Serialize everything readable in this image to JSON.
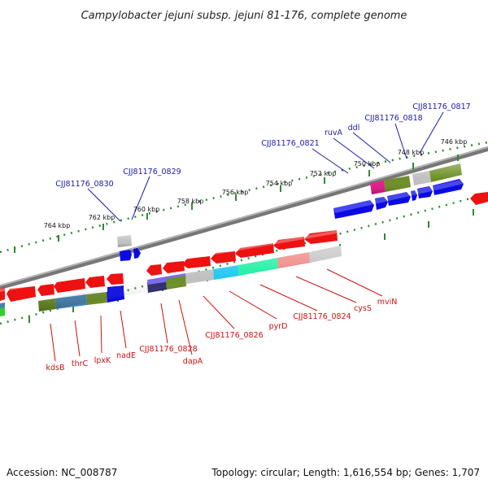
{
  "title": "Campylobacter jejuni subsp. jejuni 81-176, complete genome",
  "footer": {
    "accession": "Accession: NC_008787",
    "stats": "Topology: circular; Length: 1,616,554 bp; Genes: 1,707"
  },
  "colors": {
    "backbone": "#888888",
    "tick": "#2e8b2e",
    "plus_label": "#1a1aaa",
    "minus_label": "#cc1111",
    "red": "#ee1111",
    "blue": "#0a0ae6",
    "olive": "#6b8e23",
    "grey": "#c0c0c0"
  },
  "scale_ticks": [
    "764 kbp",
    "762 kbp",
    "760 kbp",
    "758 kbp",
    "756 kbp",
    "754 kbp",
    "752 kbp",
    "750 kbp",
    "748 kbp",
    "746 kbp"
  ],
  "plus_strand_genes": [
    "CJJ81176_0830",
    "CJJ81176_0829",
    "CJJ81176_0821",
    "ruvA",
    "ddl",
    "CJJ81176_0818",
    "CJJ81176_0817"
  ],
  "minus_strand_genes": [
    "kdsB",
    "thrC",
    "lpxK",
    "nadE",
    "CJJ81176_0828",
    "dapA",
    "CJJ81176_0826",
    "pyrD",
    "CJJ81176_0824",
    "cysS",
    "mviN"
  ]
}
